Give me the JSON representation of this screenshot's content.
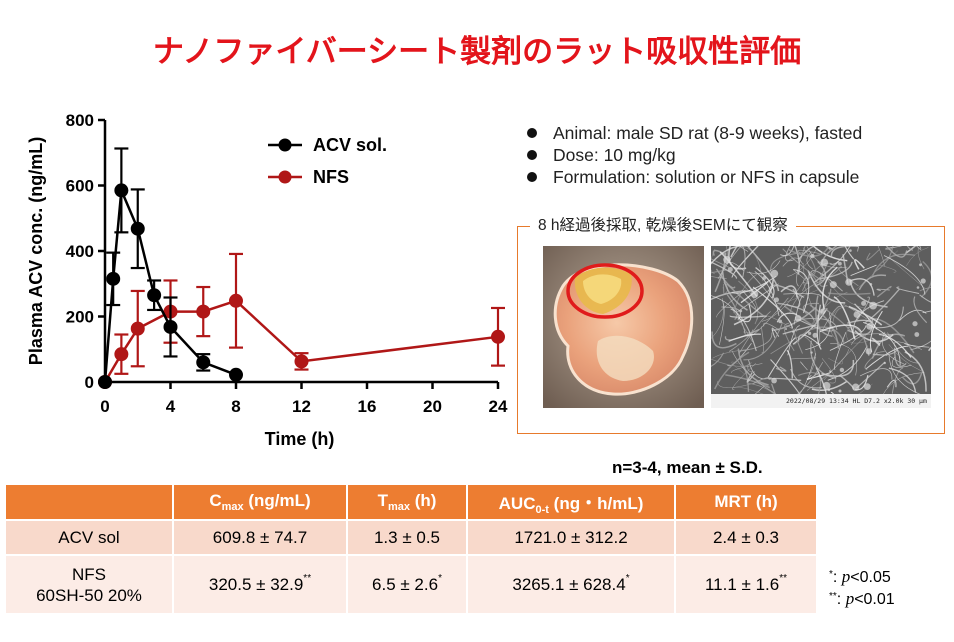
{
  "title": "ナノファイバーシート製剤のラット吸収性評価",
  "chart_data": {
    "type": "line",
    "xlabel": "Time (h)",
    "ylabel": "Plasma ACV conc. (ng/mL)",
    "xlim": [
      0,
      24
    ],
    "ylim": [
      0,
      800
    ],
    "xticks": [
      0,
      4,
      8,
      12,
      16,
      20,
      24
    ],
    "yticks": [
      0,
      200,
      400,
      600,
      800
    ],
    "legend_position": "top-right",
    "series": [
      {
        "name": "ACV sol.",
        "color": "#000000",
        "x": [
          0,
          0.5,
          1,
          2,
          3,
          4,
          6,
          8
        ],
        "y": [
          0,
          315,
          585,
          468,
          265,
          168,
          60,
          22
        ],
        "sd": [
          0,
          80,
          128,
          120,
          45,
          90,
          25,
          0
        ]
      },
      {
        "name": "NFS",
        "color": "#b01717",
        "x": [
          0,
          1,
          2,
          4,
          6,
          8,
          12,
          24
        ],
        "y": [
          0,
          85,
          163,
          215,
          215,
          248,
          63,
          138
        ],
        "sd": [
          0,
          60,
          115,
          95,
          75,
          143,
          25,
          88
        ]
      }
    ]
  },
  "bullets": [
    "Animal: male SD rat (8-9 weeks), fasted",
    "Dose: 10 mg/kg",
    "Formulation: solution or NFS in capsule"
  ],
  "photo_caption": "8 h経過後採取, 乾燥後SEMにて観察",
  "sem_info": "2022/08/29 13:34 HL  D7.2  x2.0k    30 μm",
  "stats_note": "n=3-4, mean ± S.D.",
  "table": {
    "headers": [
      {
        "main": "",
        "sub": "",
        "tail": ""
      },
      {
        "main": "C",
        "sub": "max",
        "tail": " (ng/mL)"
      },
      {
        "main": "T",
        "sub": "max",
        "tail": " (h)"
      },
      {
        "main": "AUC",
        "sub": "0-t",
        "tail": " (ng・h/mL)"
      },
      {
        "main": "MRT (h)",
        "sub": "",
        "tail": ""
      }
    ],
    "rows": [
      {
        "label": [
          "ACV sol"
        ],
        "cells": [
          "609.8 ± 74.7",
          "1.3 ± 0.5",
          "1721.0 ± 312.2",
          "2.4 ± 0.3"
        ],
        "marks": [
          "",
          "",
          "",
          ""
        ]
      },
      {
        "label": [
          "NFS",
          "60SH-50 20%"
        ],
        "cells": [
          "320.5 ± 32.9",
          "6.5 ± 2.6",
          "3265.1 ± 628.4",
          "11.1 ± 1.6"
        ],
        "marks": [
          "**",
          "*",
          "*",
          "**"
        ]
      }
    ]
  },
  "significance": [
    {
      "mark": "*",
      "text": ": ",
      "p": "p",
      "rest": "<0.05"
    },
    {
      "mark": "**",
      "text": ": ",
      "p": "p",
      "rest": "<0.01"
    }
  ]
}
